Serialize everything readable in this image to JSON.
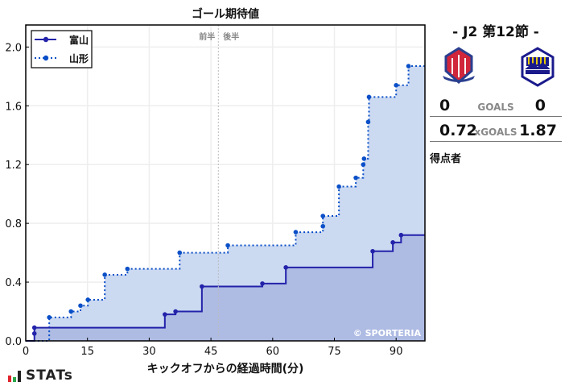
{
  "chart_data": {
    "type": "line",
    "step": true,
    "title": "ゴール期待値",
    "xlabel": "キックオフからの経過時間(分)",
    "ylabel": "",
    "xlim": [
      0,
      97
    ],
    "ylim": [
      0,
      2.15
    ],
    "xticks": [
      0,
      15,
      30,
      45,
      60,
      75,
      90
    ],
    "yticks": [
      0.0,
      0.4,
      0.8,
      1.2,
      1.6,
      2.0
    ],
    "grid": true,
    "legend_position": "top-left",
    "halftime_minute": 46.8,
    "halftime_labels": [
      "前半",
      "後半"
    ],
    "watermark": "© SPORTERIA",
    "series": [
      {
        "name": "富山",
        "color": "#2222aa",
        "fill": "#a9b5e1",
        "style": "solid",
        "points": [
          [
            2.1,
            0.05
          ],
          [
            2.1,
            0.09
          ],
          [
            33.8,
            0.18
          ],
          [
            36.4,
            0.2
          ],
          [
            42.8,
            0.37
          ],
          [
            57.5,
            0.39
          ],
          [
            63.2,
            0.5
          ],
          [
            84.3,
            0.61
          ],
          [
            89.2,
            0.67
          ],
          [
            91.2,
            0.72
          ]
        ]
      },
      {
        "name": "山形",
        "color": "#0a4fc8",
        "fill": "#cbd9f1",
        "style": "dotted",
        "points": [
          [
            5.7,
            0.16
          ],
          [
            11.0,
            0.2
          ],
          [
            13.3,
            0.24
          ],
          [
            15.1,
            0.28
          ],
          [
            19.2,
            0.45
          ],
          [
            24.7,
            0.49
          ],
          [
            37.4,
            0.6
          ],
          [
            49.1,
            0.65
          ],
          [
            65.6,
            0.74
          ],
          [
            72.2,
            0.78
          ],
          [
            72.2,
            0.85
          ],
          [
            76.1,
            1.05
          ],
          [
            80.2,
            1.11
          ],
          [
            82.0,
            1.2
          ],
          [
            82.2,
            1.24
          ],
          [
            83.2,
            1.49
          ],
          [
            83.4,
            1.66
          ],
          [
            90.0,
            1.74
          ],
          [
            93.0,
            1.87
          ]
        ]
      }
    ]
  },
  "match": {
    "round": "- J2 第12節 -",
    "home": {
      "goals": "0",
      "xgoals": "0.72",
      "color": "#d0253a"
    },
    "away": {
      "goals": "0",
      "xgoals": "1.87",
      "color": "#1a1a8c"
    },
    "goals_label": "GOALS",
    "xgoals_label": "xGOALS",
    "scorers_label": "得点者"
  },
  "brand": {
    "name": "STATs"
  }
}
